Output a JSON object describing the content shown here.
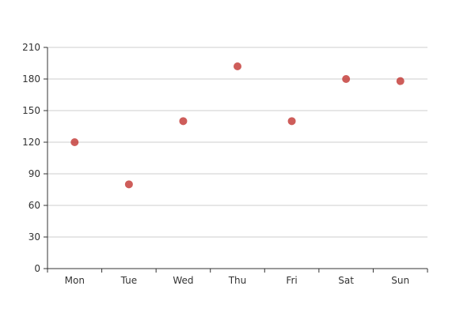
{
  "chart_data": {
    "type": "scatter",
    "categories": [
      "Mon",
      "Tue",
      "Wed",
      "Thu",
      "Fri",
      "Sat",
      "Sun"
    ],
    "values": [
      120,
      80,
      140,
      192,
      140,
      180,
      178
    ],
    "ylim": [
      0,
      210
    ],
    "yticks": [
      0,
      30,
      60,
      90,
      120,
      150,
      180,
      210
    ],
    "grid": true,
    "marker_color": "#c23531"
  }
}
